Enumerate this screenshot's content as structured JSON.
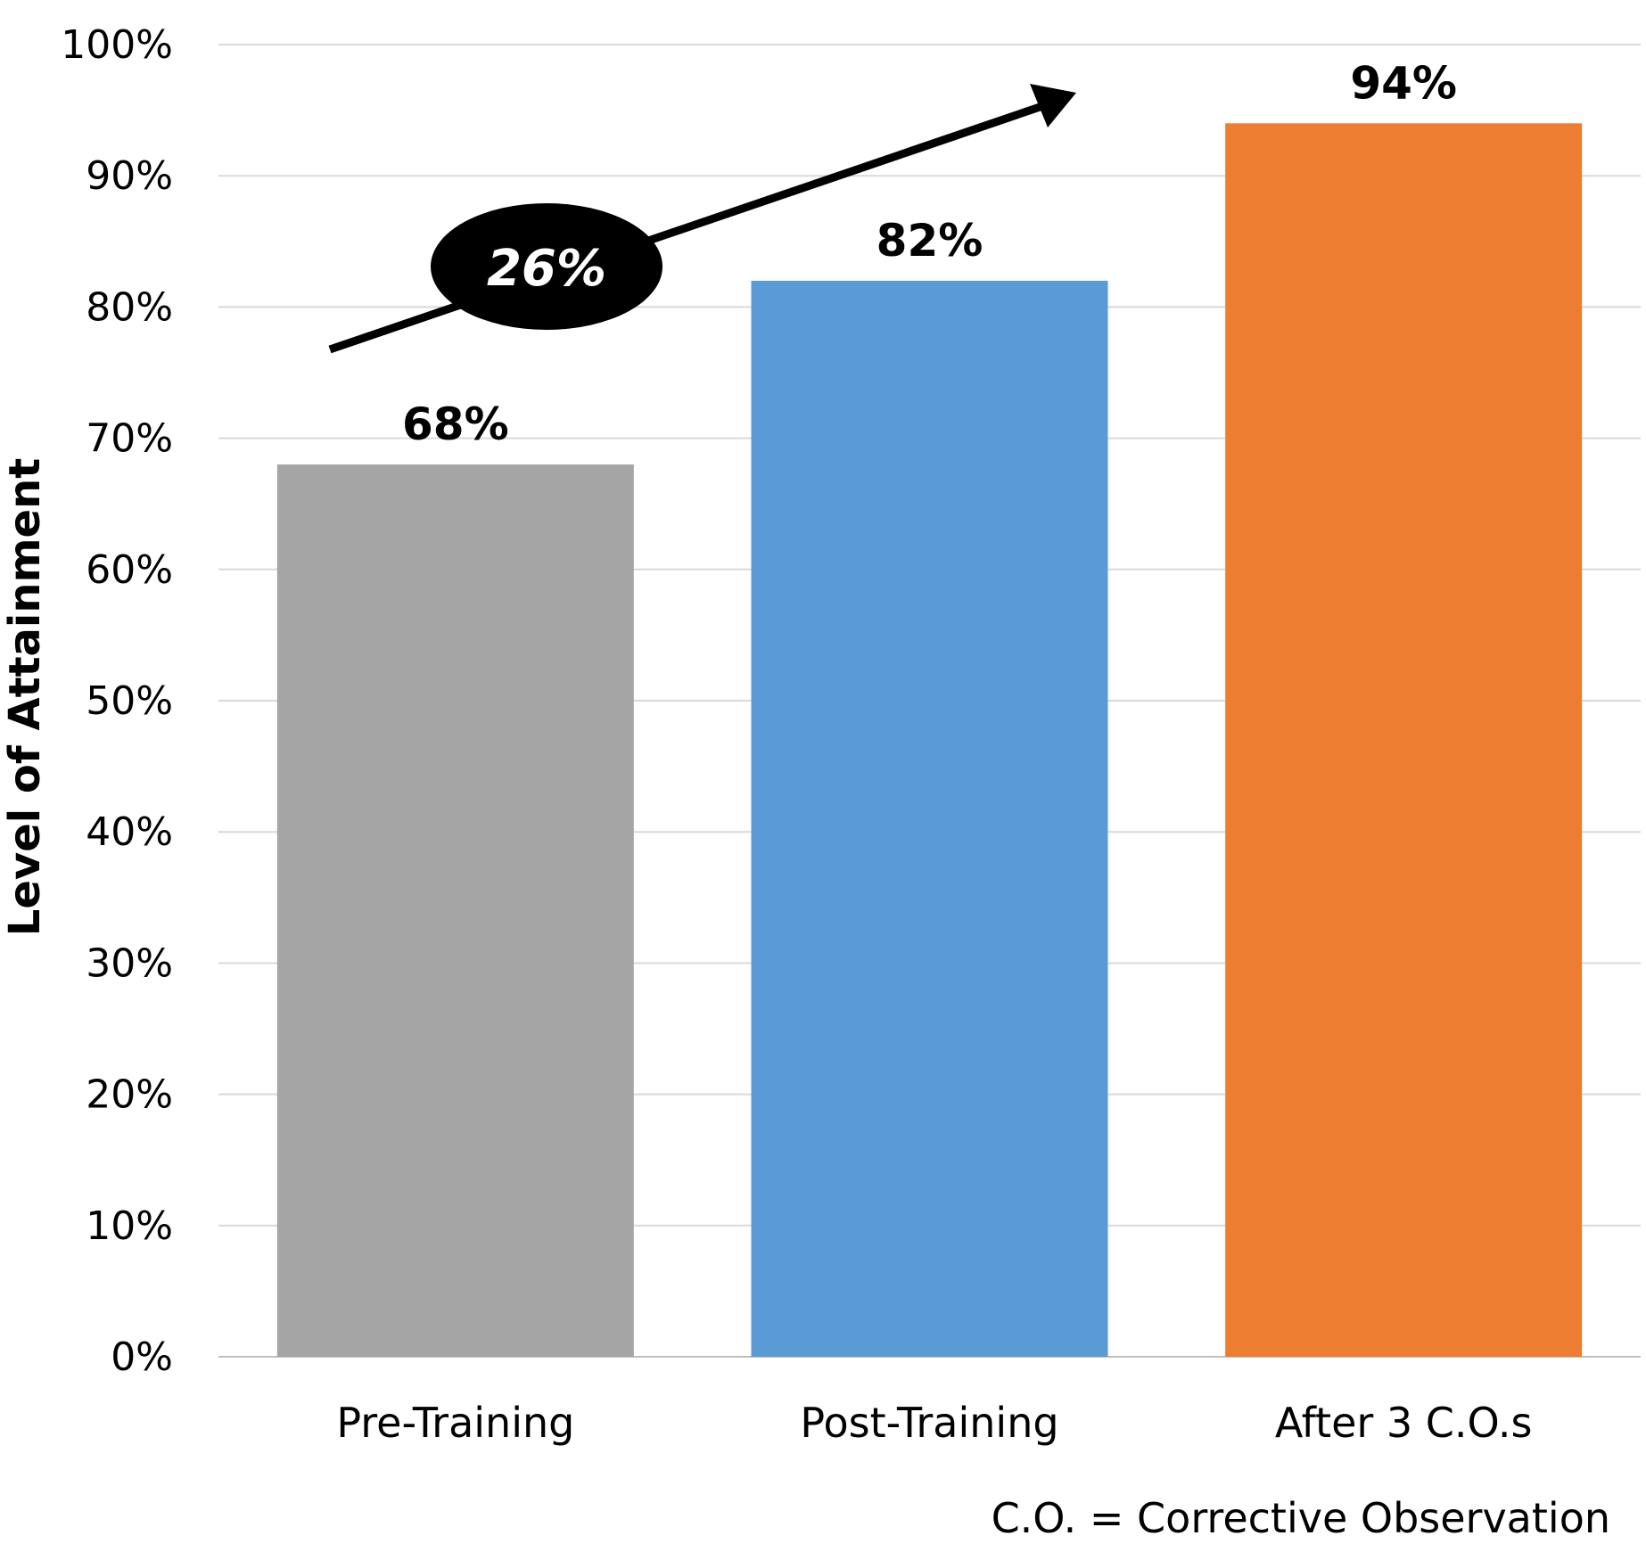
{
  "chart_data": {
    "type": "bar",
    "categories": [
      "Pre-Training",
      "Post-Training",
      "After 3 C.O.s"
    ],
    "values": [
      68,
      82,
      94
    ],
    "data_labels": [
      "68%",
      "82%",
      "94%"
    ],
    "colors": [
      "#A5A5A5",
      "#5B9BD5",
      "#ED7D31"
    ],
    "ylabel": "Level of Attainment",
    "ylim": [
      0,
      100
    ],
    "yticks": [
      "0%",
      "10%",
      "20%",
      "30%",
      "40%",
      "50%",
      "60%",
      "70%",
      "80%",
      "90%",
      "100%"
    ],
    "grid": true,
    "annotation": {
      "text": "26%",
      "type": "arrow-callout"
    },
    "footnote": "C.O. = Corrective Observation"
  }
}
